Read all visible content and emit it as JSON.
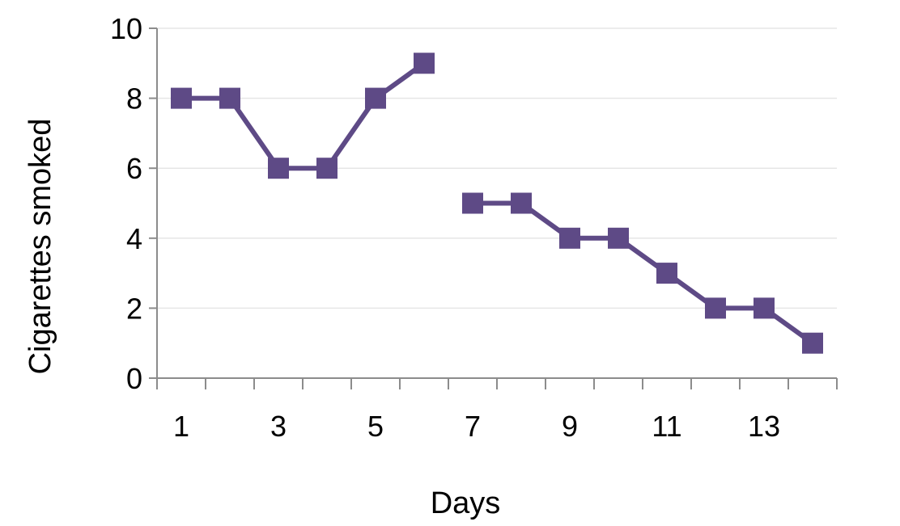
{
  "chart_data": {
    "type": "line",
    "title": "",
    "xlabel": "Days",
    "ylabel": "Cigarettes smoked",
    "xlim": [
      1,
      14
    ],
    "ylim": [
      0,
      10
    ],
    "x_ticks": [
      "1",
      "3",
      "5",
      "7",
      "9",
      "11",
      "13"
    ],
    "y_ticks": [
      "0",
      "2",
      "4",
      "6",
      "8",
      "10"
    ],
    "grid": "horizontal",
    "legend": "none",
    "series": [
      {
        "color": "#5e4a86",
        "marker": "square",
        "segments": [
          {
            "x": [
              1,
              2,
              3,
              4,
              5,
              6
            ],
            "y": [
              8,
              8,
              6,
              6,
              8,
              9
            ]
          },
          {
            "x": [
              7,
              8,
              9,
              10,
              11,
              12,
              13,
              14
            ],
            "y": [
              5,
              5,
              4,
              4,
              3,
              2,
              2,
              1
            ]
          }
        ]
      }
    ]
  }
}
